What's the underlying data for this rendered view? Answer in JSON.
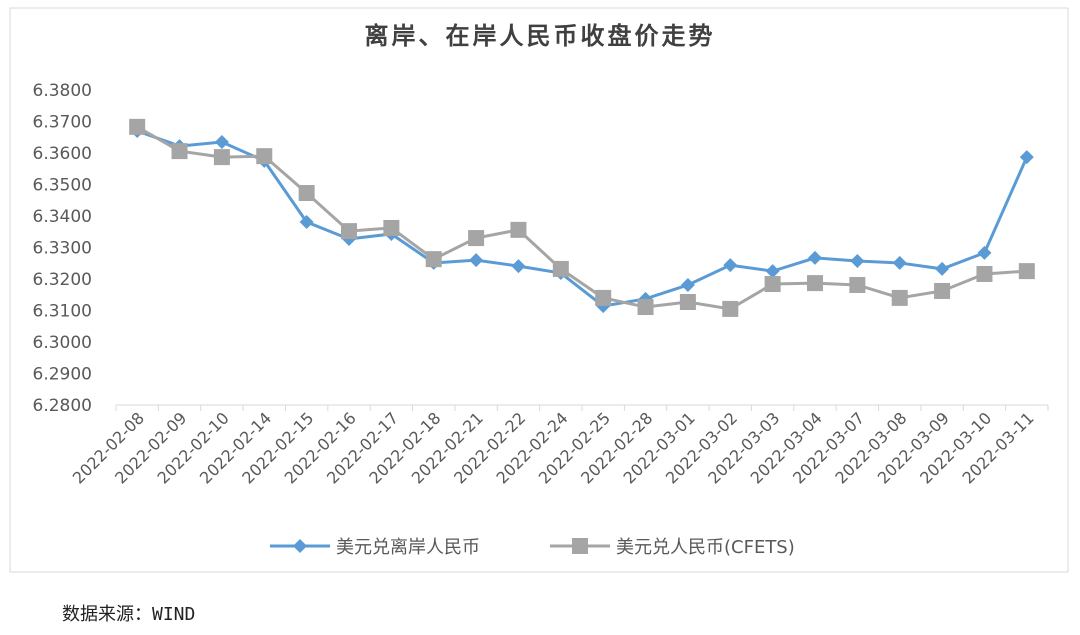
{
  "chart_data": {
    "type": "line",
    "title": "离岸、在岸人民币收盘价走势",
    "categories": [
      "2022-02-08",
      "2022-02-09",
      "2022-02-10",
      "2022-02-14",
      "2022-02-15",
      "2022-02-16",
      "2022-02-17",
      "2022-02-18",
      "2022-02-21",
      "2022-02-22",
      "2022-02-24",
      "2022-02-25",
      "2022-02-28",
      "2022-03-01",
      "2022-03-02",
      "2022-03-03",
      "2022-03-04",
      "2022-03-07",
      "2022-03-08",
      "2022-03-09",
      "2022-03-10",
      "2022-03-11"
    ],
    "series": [
      {
        "name": "美元兑离岸人民币",
        "color": "#5b9bd5",
        "marker": "diamond",
        "values": [
          6.367,
          6.3622,
          6.3635,
          6.3575,
          6.3381,
          6.3327,
          6.3343,
          6.3251,
          6.326,
          6.3241,
          6.3219,
          6.3114,
          6.3137,
          6.3181,
          6.3244,
          6.3225,
          6.3267,
          6.3257,
          6.3251,
          6.3232,
          6.3283,
          6.3587
        ]
      },
      {
        "name": "美元兑人民币(CFETS)",
        "color": "#a5a5a5",
        "marker": "square",
        "values": [
          6.3683,
          6.3606,
          6.3587,
          6.359,
          6.3473,
          6.3352,
          6.3362,
          6.3263,
          6.333,
          6.3356,
          6.3232,
          6.314,
          6.3111,
          6.3127,
          6.3105,
          6.3184,
          6.3187,
          6.3181,
          6.314,
          6.3162,
          6.3216,
          6.3225
        ]
      }
    ],
    "ylim": [
      6.28,
      6.38
    ],
    "yticks": [
      {
        "value": 6.28,
        "label": "6.2800"
      },
      {
        "value": 6.29,
        "label": "6.2900"
      },
      {
        "value": 6.3,
        "label": "6.3000"
      },
      {
        "value": 6.31,
        "label": "6.3100"
      },
      {
        "value": 6.32,
        "label": "6.3200"
      },
      {
        "value": 6.33,
        "label": "6.3300"
      },
      {
        "value": 6.34,
        "label": "6.3400"
      },
      {
        "value": 6.35,
        "label": "6.3500"
      },
      {
        "value": 6.36,
        "label": "6.3600"
      },
      {
        "value": 6.37,
        "label": "6.3700"
      },
      {
        "value": 6.38,
        "label": "6.3800"
      }
    ],
    "grid": false,
    "legend": "bottom"
  },
  "source": "数据来源：WIND"
}
